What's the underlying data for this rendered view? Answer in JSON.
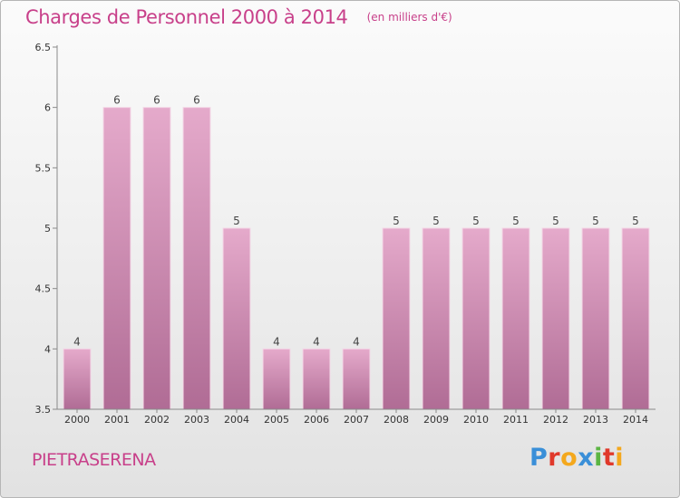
{
  "title": "Charges de Personnel 2000 à 2014",
  "subtitle": "(en milliers d'€)",
  "place": "PIETRASERENA",
  "logo_text": "Proxiti",
  "colors": {
    "accent": "#c8408a",
    "bar_top": "#e5aacb",
    "bar_bottom": "#b06c95",
    "logo": [
      "#3a8fd8",
      "#e0392b",
      "#f4a81d",
      "#3a8fd8",
      "#5bb543",
      "#e0392b",
      "#f4a81d"
    ]
  },
  "chart_data": {
    "type": "bar",
    "categories": [
      "2000",
      "2001",
      "2002",
      "2003",
      "2004",
      "2005",
      "2006",
      "2007",
      "2008",
      "2009",
      "2010",
      "2011",
      "2012",
      "2013",
      "2014"
    ],
    "values": [
      4,
      6,
      6,
      6,
      5,
      4,
      4,
      4,
      5,
      5,
      5,
      5,
      5,
      5,
      5
    ],
    "data_labels": [
      "4",
      "6",
      "6",
      "6",
      "5",
      "4",
      "4",
      "4",
      "5",
      "5",
      "5",
      "5",
      "5",
      "5",
      "5"
    ],
    "yticks": [
      3.5,
      4,
      4.5,
      5,
      5.5,
      6,
      6.5
    ],
    "ylim": [
      3.5,
      6.5
    ],
    "xlabel": "",
    "ylabel": "",
    "grid": false,
    "legend": "none"
  }
}
